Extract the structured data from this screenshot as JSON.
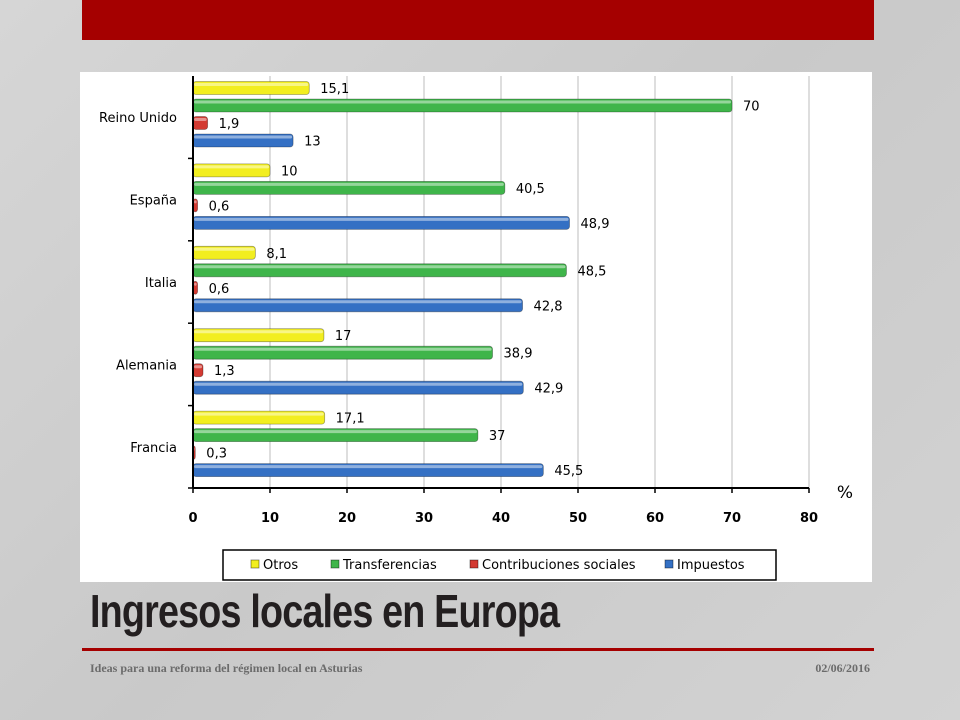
{
  "slide": {
    "title": "Ingresos locales en Europa",
    "footer_left": "Ideas para una reforma del régimen local en Asturias",
    "footer_right": "02/06/2016"
  },
  "colors": {
    "accent": "#a50000",
    "Otros": "#f2ee1f",
    "Transferencias": "#3fb54a",
    "Contribuciones sociales": "#d33a32",
    "Impuestos": "#3470c4"
  },
  "chart_data": {
    "type": "bar",
    "orientation": "horizontal",
    "categories": [
      "Reino Unido",
      "España",
      "Italia",
      "Alemania",
      "Francia"
    ],
    "series": [
      {
        "name": "Otros",
        "values": [
          15.1,
          10,
          8.1,
          17,
          17.1
        ],
        "labels": [
          "15,1",
          "10",
          "8,1",
          "17",
          "17,1"
        ]
      },
      {
        "name": "Transferencias",
        "values": [
          70,
          40.5,
          48.5,
          38.9,
          37
        ],
        "labels": [
          "70",
          "40,5",
          "48,5",
          "38,9",
          "37"
        ]
      },
      {
        "name": "Contribuciones sociales",
        "values": [
          1.9,
          0.6,
          0.6,
          1.3,
          0.3
        ],
        "labels": [
          "1,9",
          "0,6",
          "0,6",
          "1,3",
          "0,3"
        ]
      },
      {
        "name": "Impuestos",
        "values": [
          13,
          48.9,
          42.8,
          42.9,
          45.5
        ],
        "labels": [
          "13",
          "48,9",
          "42,8",
          "42,9",
          "45,5"
        ]
      }
    ],
    "xlim": [
      0,
      80
    ],
    "xticks": [
      "0",
      "10",
      "20",
      "30",
      "40",
      "50",
      "60",
      "70",
      "80"
    ],
    "xlabel": "%",
    "grid": true,
    "legend": "bottom"
  }
}
